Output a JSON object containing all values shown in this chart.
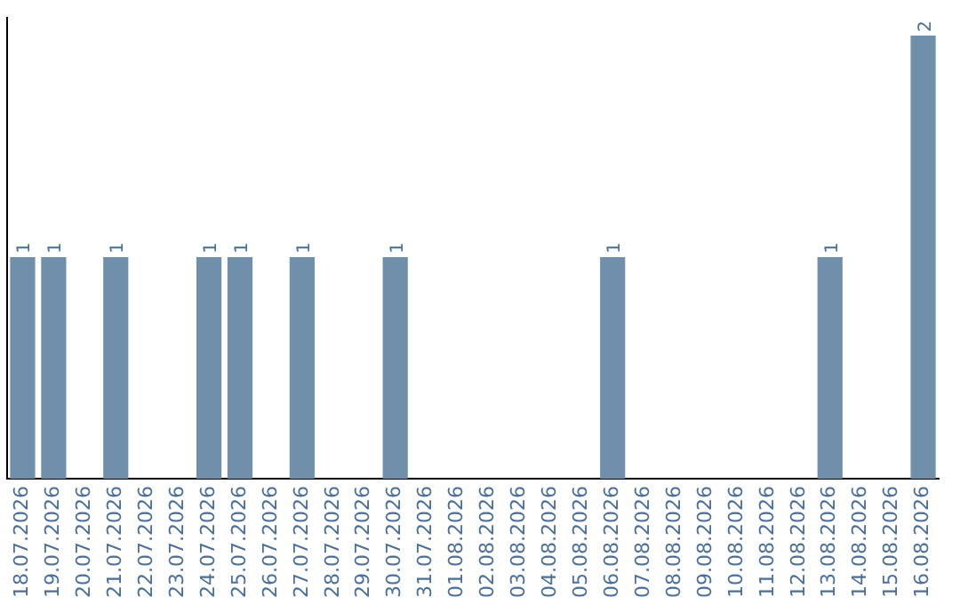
{
  "chart_data": {
    "type": "bar",
    "categories": [
      "18.07.2026",
      "19.07.2026",
      "20.07.2026",
      "21.07.2026",
      "22.07.2026",
      "23.07.2026",
      "24.07.2026",
      "25.07.2026",
      "26.07.2026",
      "27.07.2026",
      "28.07.2026",
      "29.07.2026",
      "30.07.2026",
      "31.07.2026",
      "01.08.2026",
      "02.08.2026",
      "03.08.2026",
      "04.08.2026",
      "05.08.2026",
      "06.08.2026",
      "07.08.2026",
      "08.08.2026",
      "09.08.2026",
      "10.08.2026",
      "11.08.2026",
      "12.08.2026",
      "13.08.2026",
      "14.08.2026",
      "15.08.2026",
      "16.08.2026"
    ],
    "values": [
      1,
      1,
      0,
      1,
      0,
      0,
      1,
      1,
      0,
      1,
      0,
      0,
      1,
      0,
      0,
      0,
      0,
      0,
      0,
      1,
      0,
      0,
      0,
      0,
      0,
      0,
      1,
      0,
      0,
      2
    ],
    "value_labels": [
      "1",
      "1",
      null,
      "1",
      null,
      null,
      "1",
      "1",
      null,
      "1",
      null,
      null,
      "1",
      null,
      null,
      null,
      null,
      null,
      null,
      "1",
      null,
      null,
      null,
      null,
      null,
      null,
      "1",
      null,
      null,
      "2"
    ],
    "color": "#6f8fab",
    "ylim": [
      0,
      2.08
    ],
    "tick_labels": "x",
    "grid": false,
    "legend": false
  }
}
